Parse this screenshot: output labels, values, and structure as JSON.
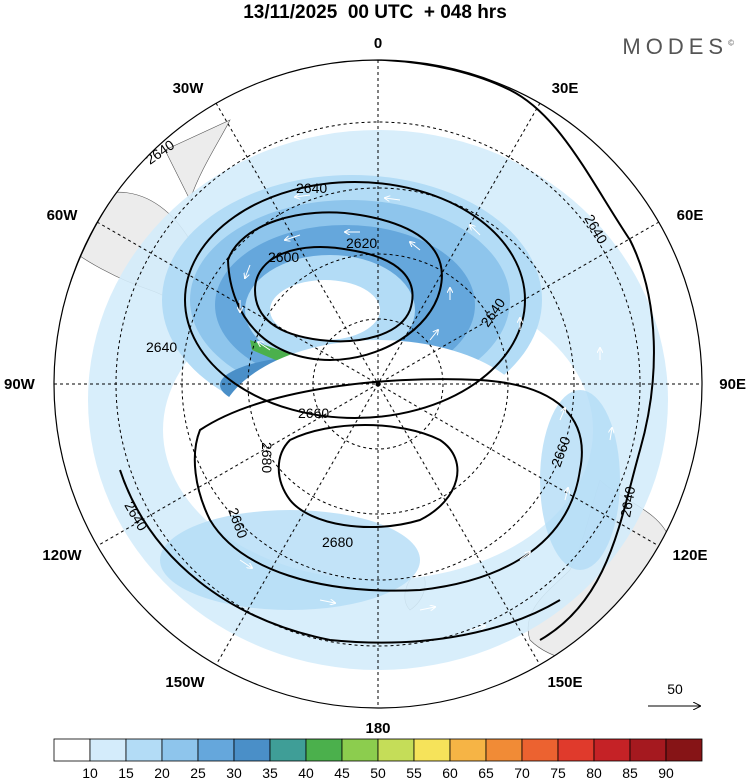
{
  "title": "13/11/2025  00 UTC  + 048 hrs",
  "brand": "MODES",
  "brand_mark": "©",
  "map": {
    "projection": "south-polar-stereographic",
    "longitude_labels": {
      "top": "0",
      "bottom": "180",
      "left": "90W",
      "right": "90E",
      "upper_left_1": "30W",
      "upper_left_2": "60W",
      "upper_right_1": "30E",
      "upper_right_2": "60E",
      "lower_left_1": "120W",
      "lower_left_2": "150W",
      "lower_right_1": "120E",
      "lower_right_2": "150E"
    },
    "contour_labels": {
      "a": "2640",
      "b": "2640",
      "c": "2620",
      "d": "2600",
      "e": "2640",
      "f": "2640",
      "g": "2640",
      "h": "2660",
      "i": "2680",
      "j": "2660",
      "k": "2680",
      "l": "2660",
      "m": "2640",
      "n": "2640"
    },
    "vector_reference": "50"
  },
  "colorbar": {
    "ticks": [
      "10",
      "15",
      "20",
      "25",
      "30",
      "35",
      "40",
      "45",
      "50",
      "55",
      "60",
      "65",
      "70",
      "75",
      "80",
      "85",
      "90"
    ],
    "colors": [
      "#ffffff",
      "#d4ecfb",
      "#b3dcf6",
      "#8ec5ec",
      "#65a7dc",
      "#4a8fc8",
      "#3f9e97",
      "#4bb04c",
      "#8ccd4e",
      "#c5dd58",
      "#f6e35a",
      "#f6b445",
      "#f18b36",
      "#ec6230",
      "#e03a2c",
      "#c52226",
      "#a5191f",
      "#861416"
    ]
  }
}
